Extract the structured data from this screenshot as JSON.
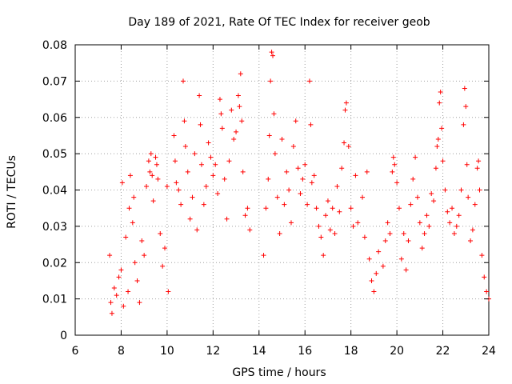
{
  "chart_data": {
    "type": "scatter",
    "title": "Day 189 of 2021, Rate Of TEC Index for receiver geob",
    "xlabel": "GPS time / hours",
    "ylabel": "ROTI / TECUs",
    "xlim": [
      6,
      24
    ],
    "ylim": [
      0,
      0.08
    ],
    "x_ticks": [
      6,
      8,
      10,
      12,
      14,
      16,
      18,
      20,
      22,
      24
    ],
    "y_ticks": [
      0,
      0.01,
      0.02,
      0.03,
      0.04,
      0.05,
      0.06,
      0.07,
      0.08
    ],
    "x_tick_labels": [
      "6",
      "8",
      "10",
      "12",
      "14",
      "16",
      "18",
      "20",
      "22",
      "24"
    ],
    "y_tick_labels": [
      "0",
      "0.01",
      "0.02",
      "0.03",
      "0.04",
      "0.05",
      "0.06",
      "0.07",
      "0.08"
    ],
    "grid": true,
    "marker": "+",
    "color": "#ff0000",
    "series": [
      {
        "name": "ROTI",
        "points": [
          [
            7.5,
            0.022
          ],
          [
            7.55,
            0.009
          ],
          [
            7.6,
            0.006
          ],
          [
            7.7,
            0.013
          ],
          [
            7.8,
            0.011
          ],
          [
            7.9,
            0.016
          ],
          [
            8.0,
            0.018
          ],
          [
            8.05,
            0.042
          ],
          [
            8.1,
            0.008
          ],
          [
            8.2,
            0.027
          ],
          [
            8.3,
            0.012
          ],
          [
            8.35,
            0.035
          ],
          [
            8.4,
            0.044
          ],
          [
            8.5,
            0.031
          ],
          [
            8.55,
            0.038
          ],
          [
            8.6,
            0.02
          ],
          [
            8.7,
            0.015
          ],
          [
            8.8,
            0.009
          ],
          [
            8.9,
            0.026
          ],
          [
            9.0,
            0.022
          ],
          [
            9.1,
            0.041
          ],
          [
            9.2,
            0.048
          ],
          [
            9.25,
            0.045
          ],
          [
            9.3,
            0.05
          ],
          [
            9.35,
            0.044
          ],
          [
            9.4,
            0.037
          ],
          [
            9.5,
            0.049
          ],
          [
            9.55,
            0.047
          ],
          [
            9.6,
            0.043
          ],
          [
            9.7,
            0.028
          ],
          [
            9.8,
            0.019
          ],
          [
            9.9,
            0.024
          ],
          [
            10.0,
            0.041
          ],
          [
            10.05,
            0.012
          ],
          [
            10.3,
            0.055
          ],
          [
            10.35,
            0.048
          ],
          [
            10.4,
            0.042
          ],
          [
            10.5,
            0.04
          ],
          [
            10.6,
            0.036
          ],
          [
            10.7,
            0.07
          ],
          [
            10.75,
            0.059
          ],
          [
            10.8,
            0.052
          ],
          [
            10.9,
            0.045
          ],
          [
            11.0,
            0.032
          ],
          [
            11.1,
            0.038
          ],
          [
            11.2,
            0.05
          ],
          [
            11.3,
            0.029
          ],
          [
            11.4,
            0.066
          ],
          [
            11.45,
            0.058
          ],
          [
            11.5,
            0.047
          ],
          [
            11.6,
            0.036
          ],
          [
            11.7,
            0.041
          ],
          [
            11.8,
            0.053
          ],
          [
            11.9,
            0.049
          ],
          [
            12.0,
            0.044
          ],
          [
            12.1,
            0.047
          ],
          [
            12.2,
            0.039
          ],
          [
            12.3,
            0.065
          ],
          [
            12.35,
            0.061
          ],
          [
            12.4,
            0.057
          ],
          [
            12.5,
            0.043
          ],
          [
            12.6,
            0.032
          ],
          [
            12.7,
            0.048
          ],
          [
            12.8,
            0.062
          ],
          [
            12.9,
            0.054
          ],
          [
            13.0,
            0.056
          ],
          [
            13.1,
            0.066
          ],
          [
            13.15,
            0.063
          ],
          [
            13.2,
            0.072
          ],
          [
            13.25,
            0.059
          ],
          [
            13.3,
            0.045
          ],
          [
            13.4,
            0.033
          ],
          [
            13.5,
            0.035
          ],
          [
            13.6,
            0.029
          ],
          [
            14.2,
            0.022
          ],
          [
            14.3,
            0.035
          ],
          [
            14.4,
            0.043
          ],
          [
            14.45,
            0.055
          ],
          [
            14.5,
            0.07
          ],
          [
            14.55,
            0.078
          ],
          [
            14.6,
            0.077
          ],
          [
            14.65,
            0.061
          ],
          [
            14.7,
            0.05
          ],
          [
            14.8,
            0.038
          ],
          [
            14.9,
            0.028
          ],
          [
            15.0,
            0.054
          ],
          [
            15.1,
            0.036
          ],
          [
            15.2,
            0.045
          ],
          [
            15.3,
            0.04
          ],
          [
            15.4,
            0.031
          ],
          [
            15.5,
            0.052
          ],
          [
            15.6,
            0.059
          ],
          [
            15.7,
            0.046
          ],
          [
            15.8,
            0.039
          ],
          [
            15.9,
            0.043
          ],
          [
            16.0,
            0.047
          ],
          [
            16.1,
            0.036
          ],
          [
            16.2,
            0.07
          ],
          [
            16.25,
            0.058
          ],
          [
            16.3,
            0.042
          ],
          [
            16.4,
            0.044
          ],
          [
            16.5,
            0.035
          ],
          [
            16.6,
            0.03
          ],
          [
            16.7,
            0.027
          ],
          [
            16.8,
            0.022
          ],
          [
            16.9,
            0.033
          ],
          [
            17.0,
            0.037
          ],
          [
            17.1,
            0.029
          ],
          [
            17.2,
            0.035
          ],
          [
            17.3,
            0.028
          ],
          [
            17.4,
            0.041
          ],
          [
            17.5,
            0.034
          ],
          [
            17.6,
            0.046
          ],
          [
            17.7,
            0.053
          ],
          [
            17.75,
            0.062
          ],
          [
            17.8,
            0.064
          ],
          [
            17.9,
            0.052
          ],
          [
            18.0,
            0.035
          ],
          [
            18.1,
            0.03
          ],
          [
            18.2,
            0.044
          ],
          [
            18.3,
            0.031
          ],
          [
            18.5,
            0.038
          ],
          [
            18.6,
            0.027
          ],
          [
            18.7,
            0.045
          ],
          [
            18.8,
            0.021
          ],
          [
            18.9,
            0.015
          ],
          [
            19.0,
            0.012
          ],
          [
            19.1,
            0.017
          ],
          [
            19.2,
            0.023
          ],
          [
            19.4,
            0.019
          ],
          [
            19.5,
            0.026
          ],
          [
            19.6,
            0.031
          ],
          [
            19.7,
            0.028
          ],
          [
            19.8,
            0.045
          ],
          [
            19.85,
            0.049
          ],
          [
            19.9,
            0.047
          ],
          [
            20.0,
            0.042
          ],
          [
            20.1,
            0.035
          ],
          [
            20.2,
            0.021
          ],
          [
            20.3,
            0.028
          ],
          [
            20.4,
            0.018
          ],
          [
            20.5,
            0.026
          ],
          [
            20.6,
            0.036
          ],
          [
            20.7,
            0.043
          ],
          [
            20.8,
            0.049
          ],
          [
            20.9,
            0.038
          ],
          [
            21.0,
            0.031
          ],
          [
            21.1,
            0.024
          ],
          [
            21.2,
            0.028
          ],
          [
            21.3,
            0.033
          ],
          [
            21.4,
            0.03
          ],
          [
            21.5,
            0.039
          ],
          [
            21.6,
            0.037
          ],
          [
            21.7,
            0.046
          ],
          [
            21.75,
            0.052
          ],
          [
            21.8,
            0.054
          ],
          [
            21.85,
            0.064
          ],
          [
            21.9,
            0.067
          ],
          [
            21.95,
            0.057
          ],
          [
            22.0,
            0.048
          ],
          [
            22.1,
            0.04
          ],
          [
            22.2,
            0.034
          ],
          [
            22.3,
            0.031
          ],
          [
            22.4,
            0.035
          ],
          [
            22.5,
            0.028
          ],
          [
            22.6,
            0.03
          ],
          [
            22.7,
            0.033
          ],
          [
            22.8,
            0.04
          ],
          [
            22.9,
            0.058
          ],
          [
            22.95,
            0.068
          ],
          [
            23.0,
            0.063
          ],
          [
            23.05,
            0.047
          ],
          [
            23.1,
            0.038
          ],
          [
            23.2,
            0.026
          ],
          [
            23.3,
            0.029
          ],
          [
            23.4,
            0.036
          ],
          [
            23.5,
            0.046
          ],
          [
            23.55,
            0.048
          ],
          [
            23.6,
            0.04
          ],
          [
            23.7,
            0.022
          ],
          [
            23.8,
            0.016
          ],
          [
            23.9,
            0.012
          ],
          [
            24.0,
            0.01
          ]
        ]
      }
    ]
  }
}
